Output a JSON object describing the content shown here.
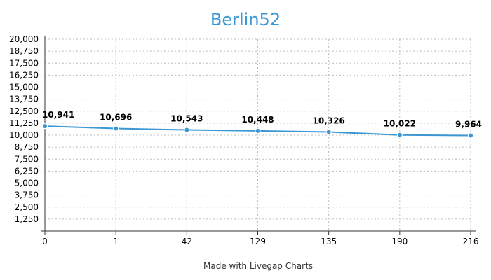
{
  "footer": "Made with Livegap Charts",
  "chart_data": {
    "type": "line",
    "title": "Berlin52",
    "xlabel": "",
    "ylabel": "",
    "categories": [
      "0",
      "1",
      "42",
      "129",
      "135",
      "190",
      "216"
    ],
    "series": [
      {
        "values": [
          10941,
          10696,
          10543,
          10448,
          10326,
          10022,
          9964
        ],
        "labels": [
          "10,941",
          "10,696",
          "10,543",
          "10,448",
          "10,326",
          "10,022",
          "9,964"
        ],
        "color": "#3a97d4"
      }
    ],
    "ylim": [
      0,
      20000
    ],
    "yticks": [
      "1,250",
      "2,500",
      "3,750",
      "5,000",
      "6,250",
      "7,500",
      "8,750",
      "10,000",
      "11,250",
      "12,500",
      "13,750",
      "15,000",
      "16,250",
      "17,500",
      "18,750",
      "20,000"
    ],
    "ytick_values": [
      1250,
      2500,
      3750,
      5000,
      6250,
      7500,
      8750,
      10000,
      11250,
      12500,
      13750,
      15000,
      16250,
      17500,
      18750,
      20000
    ],
    "grid": true,
    "legend": "none"
  }
}
